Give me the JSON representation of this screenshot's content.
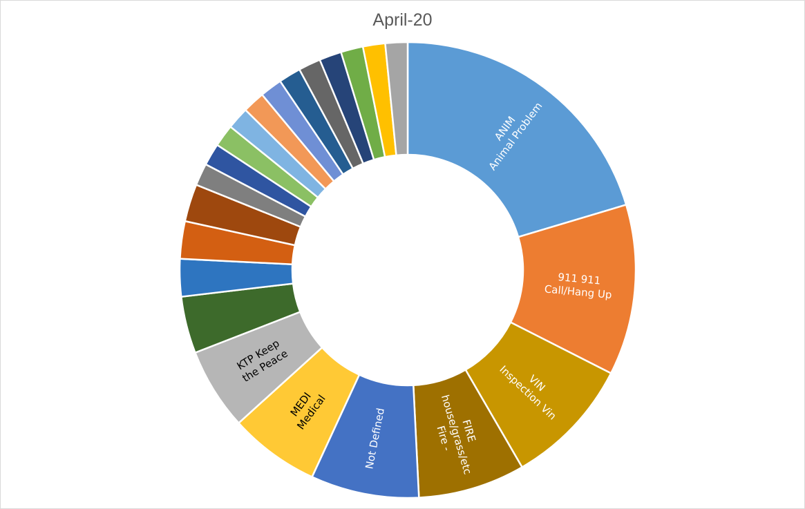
{
  "chart_data": {
    "type": "pie",
    "title": "April-20",
    "donut": true,
    "slices": [
      {
        "value": 20.7,
        "color": "#5b9bd5",
        "label_lines": [
          "ANIM",
          "Animal Problem"
        ],
        "label_color": "#ffffff"
      },
      {
        "value": 12.3,
        "color": "#ed7d31",
        "label_lines": [
          "911          911",
          "Call/Hang Up"
        ],
        "label_color": "#ffffff"
      },
      {
        "value": 9.3,
        "color": "#c89600",
        "label_lines": [
          "VIN",
          "Inspection     Vin"
        ],
        "label_color": "#ffffff"
      },
      {
        "value": 7.7,
        "color": "#9e7000",
        "label_lines": [
          "FIRE",
          "house/grass/etc",
          "Fire -"
        ],
        "label_color": "#ffffff"
      },
      {
        "value": 7.8,
        "color": "#4472c4",
        "label_lines": [
          "Not Defined"
        ],
        "label_color": "#ffffff"
      },
      {
        "value": 6.5,
        "color": "#ffc935",
        "label_lines": [
          "MEDI",
          "Medical"
        ],
        "label_color": "#000000"
      },
      {
        "value": 5.9,
        "color": "#b6b6b6",
        "label_lines": [
          "KTP          Keep",
          "the Peace"
        ],
        "label_color": "#000000"
      },
      {
        "value": 4.1,
        "color": "#3d6a2b",
        "label_lines": [],
        "label_color": "#ffffff"
      },
      {
        "value": 2.7,
        "color": "#2e75c0",
        "label_lines": [],
        "label_color": "#ffffff"
      },
      {
        "value": 2.7,
        "color": "#d35f12",
        "label_lines": [],
        "label_color": "#ffffff"
      },
      {
        "value": 2.7,
        "color": "#9e480e",
        "label_lines": [],
        "label_color": "#ffffff"
      },
      {
        "value": 1.6,
        "color": "#7f7f7f",
        "label_lines": [],
        "label_color": "#ffffff"
      },
      {
        "value": 1.6,
        "color": "#2f55a1",
        "label_lines": [],
        "label_color": "#ffffff"
      },
      {
        "value": 1.6,
        "color": "#8bc064",
        "label_lines": [],
        "label_color": "#ffffff"
      },
      {
        "value": 1.6,
        "color": "#7fb4e2",
        "label_lines": [],
        "label_color": "#ffffff"
      },
      {
        "value": 1.6,
        "color": "#f29857",
        "label_lines": [],
        "label_color": "#ffffff"
      },
      {
        "value": 1.6,
        "color": "#6f8fd5",
        "label_lines": [],
        "label_color": "#ffffff"
      },
      {
        "value": 1.6,
        "color": "#255d91",
        "label_lines": [],
        "label_color": "#ffffff"
      },
      {
        "value": 1.6,
        "color": "#666666",
        "label_lines": [],
        "label_color": "#ffffff"
      },
      {
        "value": 1.6,
        "color": "#264478",
        "label_lines": [],
        "label_color": "#ffffff"
      },
      {
        "value": 1.6,
        "color": "#70ad47",
        "label_lines": [],
        "label_color": "#ffffff"
      },
      {
        "value": 1.6,
        "color": "#ffc000",
        "label_lines": [],
        "label_color": "#ffffff"
      },
      {
        "value": 1.6,
        "color": "#a5a5a5",
        "label_lines": [],
        "label_color": "#ffffff"
      }
    ],
    "legend": "none"
  }
}
